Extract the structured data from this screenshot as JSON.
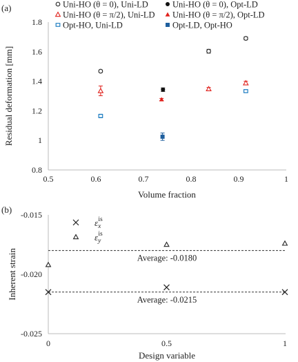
{
  "chart_data": [
    {
      "panel": "(a)",
      "type": "scatter",
      "xlabel": "Volume fraction",
      "ylabel": "Residual deformation [mm]",
      "xlim": [
        0.5,
        1.0
      ],
      "ylim": [
        0.8,
        1.8
      ],
      "xticks": [
        "0.5",
        "0.6",
        "0.7",
        "0.8",
        "0.9",
        "1"
      ],
      "yticks": [
        "0.8",
        "1",
        "1.2",
        "1.4",
        "1.6",
        "1.8"
      ],
      "grid": false,
      "legend_position": "top",
      "series": [
        {
          "name": "Uni-HO (θ = 0), Uni-LD",
          "marker": "open-circle",
          "color": "#333333",
          "points": [
            {
              "x": 0.61,
              "y": 1.468,
              "err": 0.008
            },
            {
              "x": 0.837,
              "y": 1.603,
              "err": 0.013
            },
            {
              "x": 0.915,
              "y": 1.69,
              "err": 0.01
            }
          ]
        },
        {
          "name": "Uni-HO (θ = 0), Opt-LD",
          "marker": "filled-circle",
          "color": "#111111",
          "points": [
            {
              "x": 0.741,
              "y": 1.343,
              "err": 0.012
            }
          ]
        },
        {
          "name": "Uni-HO (θ = π/2), Uni-LD",
          "marker": "open-triangle",
          "color": "#e0201b",
          "points": [
            {
              "x": 0.61,
              "y": 1.335,
              "err": 0.033
            },
            {
              "x": 0.837,
              "y": 1.348,
              "err": 0.01
            },
            {
              "x": 0.915,
              "y": 1.388,
              "err": 0.012
            }
          ]
        },
        {
          "name": "Uni-HO (θ = π/2), Opt-LD",
          "marker": "filled-triangle",
          "color": "#e0201b",
          "points": [
            {
              "x": 0.738,
              "y": 1.277,
              "err": 0.007
            }
          ]
        },
        {
          "name": "Opt-HO, Uni-LD",
          "marker": "open-square",
          "color": "#1f7ec2",
          "points": [
            {
              "x": 0.61,
              "y": 1.165,
              "err": 0.012
            },
            {
              "x": 0.915,
              "y": 1.333,
              "err": 0.01
            }
          ]
        },
        {
          "name": "Opt-LD, Opt-HO",
          "marker": "filled-square",
          "color": "#1f5f9e",
          "points": [
            {
              "x": 0.74,
              "y": 1.025,
              "err": 0.025
            }
          ]
        }
      ]
    },
    {
      "panel": "(b)",
      "type": "scatter",
      "xlabel": "Design variable",
      "ylabel": "Inherent strain",
      "xlim": [
        0,
        1
      ],
      "ylim": [
        -0.025,
        -0.015
      ],
      "xticks": [
        "0",
        "0.5",
        "1"
      ],
      "yticks": [
        "-0.015",
        "-0.020",
        "-0.025"
      ],
      "grid": false,
      "series": [
        {
          "name": "ε_x^is",
          "marker": "x",
          "color": "#222222",
          "points": [
            {
              "x": 0,
              "y": -0.0215
            },
            {
              "x": 0.5,
              "y": -0.0211
            },
            {
              "x": 1,
              "y": -0.0215
            }
          ]
        },
        {
          "name": "ε_y^is",
          "marker": "open-triangle",
          "color": "#222222",
          "points": [
            {
              "x": 0,
              "y": -0.0192
            },
            {
              "x": 0.5,
              "y": -0.0175
            },
            {
              "x": 1,
              "y": -0.0174
            }
          ]
        }
      ],
      "reference_lines": [
        {
          "y": -0.018,
          "label": "Average: -0.0180"
        },
        {
          "y": -0.0215,
          "label": "Average: -0.0215"
        }
      ],
      "legend_symbol": "ε",
      "legend_sub_x": "x",
      "legend_sub_y": "y",
      "legend_sup": "is"
    }
  ]
}
